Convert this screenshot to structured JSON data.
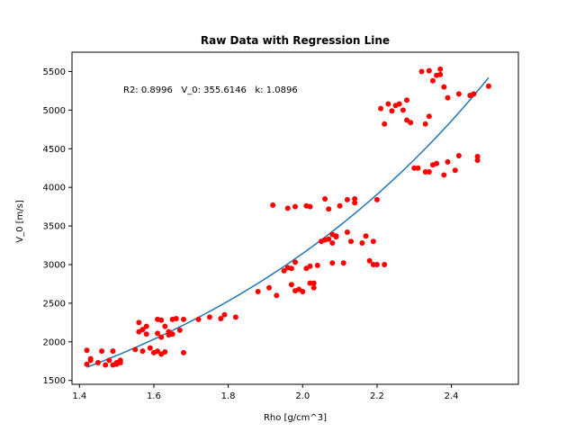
{
  "chart_data": {
    "type": "scatter",
    "title": "Raw Data with Regression Line",
    "xlabel": "Rho [g/cm^3]",
    "ylabel": "V_0 [m/s]",
    "xlim": [
      1.38,
      2.58
    ],
    "ylim": [
      1450,
      5750
    ],
    "xticks": [
      "1.4",
      "1.6",
      "1.8",
      "2.0",
      "2.2",
      "2.4"
    ],
    "yticks": [
      "1500",
      "2000",
      "2500",
      "3000",
      "3500",
      "4000",
      "4500",
      "5000",
      "5500"
    ],
    "annotation": "R2: 0.8996   V_0: 355.6146   k: 1.0896",
    "grid": false,
    "colors": {
      "points": "#ff0000",
      "line": "#1f77b4"
    },
    "regression": {
      "model": "V_0 * exp(k * Rho)",
      "V_0": 355.6146,
      "k": 1.0896,
      "x_range": [
        1.42,
        2.5
      ]
    },
    "points": [
      [
        1.42,
        1890
      ],
      [
        1.42,
        1710
      ],
      [
        1.43,
        1760
      ],
      [
        1.43,
        1780
      ],
      [
        1.45,
        1730
      ],
      [
        1.46,
        1880
      ],
      [
        1.47,
        1700
      ],
      [
        1.48,
        1760
      ],
      [
        1.49,
        1880
      ],
      [
        1.49,
        1700
      ],
      [
        1.5,
        1730
      ],
      [
        1.5,
        1710
      ],
      [
        1.51,
        1760
      ],
      [
        1.51,
        1730
      ],
      [
        1.55,
        1900
      ],
      [
        1.56,
        2250
      ],
      [
        1.56,
        2130
      ],
      [
        1.57,
        2160
      ],
      [
        1.57,
        1880
      ],
      [
        1.58,
        2200
      ],
      [
        1.58,
        2100
      ],
      [
        1.59,
        1920
      ],
      [
        1.6,
        1860
      ],
      [
        1.61,
        1880
      ],
      [
        1.61,
        2110
      ],
      [
        1.61,
        2290
      ],
      [
        1.62,
        2280
      ],
      [
        1.62,
        2060
      ],
      [
        1.62,
        1840
      ],
      [
        1.63,
        2200
      ],
      [
        1.63,
        1870
      ],
      [
        1.64,
        2130
      ],
      [
        1.64,
        2090
      ],
      [
        1.65,
        2100
      ],
      [
        1.65,
        2290
      ],
      [
        1.66,
        2300
      ],
      [
        1.67,
        2150
      ],
      [
        1.68,
        2290
      ],
      [
        1.68,
        1860
      ],
      [
        1.72,
        2290
      ],
      [
        1.75,
        2320
      ],
      [
        1.78,
        2300
      ],
      [
        1.79,
        2350
      ],
      [
        1.82,
        2320
      ],
      [
        1.88,
        2650
      ],
      [
        1.91,
        2700
      ],
      [
        1.92,
        3770
      ],
      [
        1.93,
        2600
      ],
      [
        1.95,
        2920
      ],
      [
        1.96,
        2960
      ],
      [
        1.96,
        3730
      ],
      [
        1.97,
        2950
      ],
      [
        1.97,
        2740
      ],
      [
        1.98,
        2660
      ],
      [
        1.98,
        3030
      ],
      [
        1.98,
        3750
      ],
      [
        1.99,
        2680
      ],
      [
        2.0,
        2650
      ],
      [
        2.01,
        3760
      ],
      [
        2.01,
        2950
      ],
      [
        2.02,
        2980
      ],
      [
        2.02,
        2760
      ],
      [
        2.02,
        3750
      ],
      [
        2.03,
        2700
      ],
      [
        2.03,
        2760
      ],
      [
        2.04,
        2990
      ],
      [
        2.05,
        3300
      ],
      [
        2.06,
        3320
      ],
      [
        2.06,
        3850
      ],
      [
        2.07,
        3330
      ],
      [
        2.07,
        3720
      ],
      [
        2.08,
        3390
      ],
      [
        2.08,
        3280
      ],
      [
        2.08,
        3020
      ],
      [
        2.09,
        3360
      ],
      [
        2.09,
        3370
      ],
      [
        2.1,
        3760
      ],
      [
        2.11,
        3020
      ],
      [
        2.12,
        3840
      ],
      [
        2.12,
        3420
      ],
      [
        2.13,
        3300
      ],
      [
        2.14,
        3850
      ],
      [
        2.14,
        3800
      ],
      [
        2.16,
        3280
      ],
      [
        2.17,
        3370
      ],
      [
        2.18,
        3050
      ],
      [
        2.19,
        3300
      ],
      [
        2.19,
        3000
      ],
      [
        2.2,
        3000
      ],
      [
        2.2,
        3840
      ],
      [
        2.21,
        5020
      ],
      [
        2.22,
        4820
      ],
      [
        2.22,
        3000
      ],
      [
        2.23,
        5080
      ],
      [
        2.24,
        4990
      ],
      [
        2.25,
        5060
      ],
      [
        2.26,
        5080
      ],
      [
        2.27,
        5000
      ],
      [
        2.28,
        4870
      ],
      [
        2.28,
        5130
      ],
      [
        2.29,
        4840
      ],
      [
        2.3,
        4250
      ],
      [
        2.31,
        4250
      ],
      [
        2.32,
        5500
      ],
      [
        2.33,
        4200
      ],
      [
        2.33,
        4820
      ],
      [
        2.34,
        5510
      ],
      [
        2.34,
        4920
      ],
      [
        2.34,
        4200
      ],
      [
        2.35,
        5380
      ],
      [
        2.35,
        4290
      ],
      [
        2.36,
        5450
      ],
      [
        2.36,
        4310
      ],
      [
        2.37,
        5530
      ],
      [
        2.37,
        5460
      ],
      [
        2.38,
        4160
      ],
      [
        2.38,
        5300
      ],
      [
        2.39,
        4330
      ],
      [
        2.39,
        5160
      ],
      [
        2.41,
        4220
      ],
      [
        2.42,
        4410
      ],
      [
        2.42,
        5210
      ],
      [
        2.45,
        5190
      ],
      [
        2.46,
        5210
      ],
      [
        2.47,
        4350
      ],
      [
        2.47,
        4400
      ],
      [
        2.5,
        5310
      ]
    ]
  }
}
